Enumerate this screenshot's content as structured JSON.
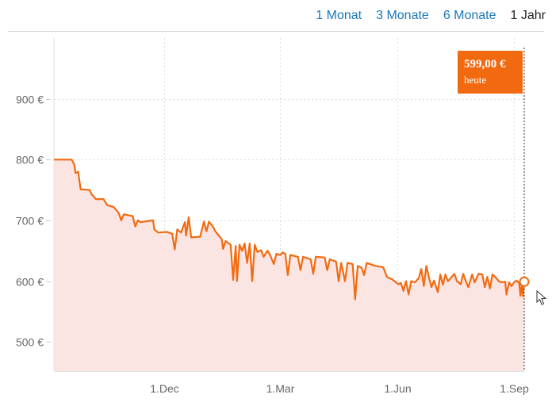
{
  "range_tabs": [
    {
      "label": "1 Monat",
      "active": false
    },
    {
      "label": "3 Monate",
      "active": false
    },
    {
      "label": "6 Monate",
      "active": false
    },
    {
      "label": "1 Jahr",
      "active": true
    }
  ],
  "current_badge": {
    "price": "599,00 €",
    "label": "heute"
  },
  "colors": {
    "line": "#f26a10",
    "fill": "#fbe5e3",
    "tab_link": "#1a78b8",
    "badge": "#f26a10"
  },
  "chart_data": {
    "type": "area",
    "title": "",
    "xlabel": "",
    "ylabel": "",
    "ylim": [
      452,
      1000
    ],
    "xlim": [
      "2015-09-05",
      "2016-09-09"
    ],
    "grid": true,
    "y_ticks": [
      {
        "value": 500,
        "label": "500 €"
      },
      {
        "value": 600,
        "label": "600 €"
      },
      {
        "value": 700,
        "label": "700 €"
      },
      {
        "value": 800,
        "label": "800 €"
      },
      {
        "value": 900,
        "label": "900 €"
      }
    ],
    "x_ticks": [
      {
        "value": "2015-12-01",
        "label": "1.Dec"
      },
      {
        "value": "2016-03-01",
        "label": "1.Mar"
      },
      {
        "value": "2016-06-01",
        "label": "1.Jun"
      },
      {
        "value": "2016-09-01",
        "label": "1.Sep"
      }
    ],
    "series": [
      {
        "points": [
          [
            "2015-09-05",
            800
          ],
          [
            "2015-09-19",
            800
          ],
          [
            "2015-09-21",
            792
          ],
          [
            "2015-09-22",
            778
          ],
          [
            "2015-09-24",
            780
          ],
          [
            "2015-09-26",
            751
          ],
          [
            "2015-10-03",
            750
          ],
          [
            "2015-10-05",
            742
          ],
          [
            "2015-10-08",
            735
          ],
          [
            "2015-10-14",
            735
          ],
          [
            "2015-10-17",
            725
          ],
          [
            "2015-10-22",
            722
          ],
          [
            "2015-10-26",
            712
          ],
          [
            "2015-10-28",
            700
          ],
          [
            "2015-10-30",
            710
          ],
          [
            "2015-11-06",
            707
          ],
          [
            "2015-11-08",
            690
          ],
          [
            "2015-11-10",
            700
          ],
          [
            "2015-11-12",
            697
          ],
          [
            "2015-11-22",
            700
          ],
          [
            "2015-11-23",
            685
          ],
          [
            "2015-11-26",
            680
          ],
          [
            "2015-12-03",
            681
          ],
          [
            "2015-12-07",
            678
          ],
          [
            "2015-12-09",
            652
          ],
          [
            "2015-12-11",
            685
          ],
          [
            "2015-12-14",
            680
          ],
          [
            "2015-12-17",
            697
          ],
          [
            "2015-12-18",
            675
          ],
          [
            "2015-12-20",
            705
          ],
          [
            "2015-12-22",
            672
          ],
          [
            "2015-12-29",
            673
          ],
          [
            "2016-01-01",
            698
          ],
          [
            "2016-01-03",
            682
          ],
          [
            "2016-01-05",
            698
          ],
          [
            "2016-01-08",
            690
          ],
          [
            "2016-01-10",
            682
          ],
          [
            "2016-01-15",
            669
          ],
          [
            "2016-01-16",
            653
          ],
          [
            "2016-01-18",
            666
          ],
          [
            "2016-01-22",
            660
          ],
          [
            "2016-01-24",
            602
          ],
          [
            "2016-01-26",
            658
          ],
          [
            "2016-01-27",
            600
          ],
          [
            "2016-01-29",
            660
          ],
          [
            "2016-01-31",
            650
          ],
          [
            "2016-02-02",
            662
          ],
          [
            "2016-02-04",
            630
          ],
          [
            "2016-02-06",
            662
          ],
          [
            "2016-02-08",
            600
          ],
          [
            "2016-02-10",
            660
          ],
          [
            "2016-02-12",
            648
          ],
          [
            "2016-02-15",
            651
          ],
          [
            "2016-02-17",
            640
          ],
          [
            "2016-02-20",
            650
          ],
          [
            "2016-02-22",
            643
          ],
          [
            "2016-02-25",
            628
          ],
          [
            "2016-02-27",
            645
          ],
          [
            "2016-03-01",
            643
          ],
          [
            "2016-03-03",
            647
          ],
          [
            "2016-03-05",
            645
          ],
          [
            "2016-03-07",
            610
          ],
          [
            "2016-03-09",
            643
          ],
          [
            "2016-03-15",
            640
          ],
          [
            "2016-03-17",
            618
          ],
          [
            "2016-03-19",
            640
          ],
          [
            "2016-03-25",
            636
          ],
          [
            "2016-03-27",
            612
          ],
          [
            "2016-03-29",
            640
          ],
          [
            "2016-04-05",
            639
          ],
          [
            "2016-04-07",
            618
          ],
          [
            "2016-04-09",
            636
          ],
          [
            "2016-04-14",
            632
          ],
          [
            "2016-04-16",
            600
          ],
          [
            "2016-04-18",
            630
          ],
          [
            "2016-04-21",
            600
          ],
          [
            "2016-04-23",
            630
          ],
          [
            "2016-04-27",
            628
          ],
          [
            "2016-04-29",
            570
          ],
          [
            "2016-05-01",
            625
          ],
          [
            "2016-05-04",
            622
          ],
          [
            "2016-05-06",
            610
          ],
          [
            "2016-05-08",
            630
          ],
          [
            "2016-05-15",
            625
          ],
          [
            "2016-05-21",
            623
          ],
          [
            "2016-05-24",
            607
          ],
          [
            "2016-05-28",
            603
          ],
          [
            "2016-06-02",
            595
          ],
          [
            "2016-06-04",
            597
          ],
          [
            "2016-06-06",
            584
          ],
          [
            "2016-06-08",
            600
          ],
          [
            "2016-06-10",
            578
          ],
          [
            "2016-06-12",
            600
          ],
          [
            "2016-06-15",
            598
          ],
          [
            "2016-06-18",
            605
          ],
          [
            "2016-06-20",
            620
          ],
          [
            "2016-06-22",
            592
          ],
          [
            "2016-06-24",
            625
          ],
          [
            "2016-06-26",
            606
          ],
          [
            "2016-06-28",
            590
          ],
          [
            "2016-06-30",
            601
          ],
          [
            "2016-07-03",
            582
          ],
          [
            "2016-07-05",
            611
          ],
          [
            "2016-07-07",
            594
          ],
          [
            "2016-07-09",
            611
          ],
          [
            "2016-07-11",
            600
          ],
          [
            "2016-07-14",
            607
          ],
          [
            "2016-07-16",
            612
          ],
          [
            "2016-07-18",
            600
          ],
          [
            "2016-07-21",
            595
          ],
          [
            "2016-07-23",
            612
          ],
          [
            "2016-07-25",
            600
          ],
          [
            "2016-07-27",
            590
          ],
          [
            "2016-07-30",
            611
          ],
          [
            "2016-08-01",
            598
          ],
          [
            "2016-08-04",
            612
          ],
          [
            "2016-08-07",
            611
          ],
          [
            "2016-08-09",
            590
          ],
          [
            "2016-08-11",
            607
          ],
          [
            "2016-08-13",
            588
          ],
          [
            "2016-08-15",
            611
          ],
          [
            "2016-08-18",
            605
          ],
          [
            "2016-08-20",
            600
          ],
          [
            "2016-08-22",
            598
          ],
          [
            "2016-08-25",
            599
          ],
          [
            "2016-08-26",
            578
          ],
          [
            "2016-08-28",
            598
          ],
          [
            "2016-08-30",
            592
          ],
          [
            "2016-09-01",
            598
          ],
          [
            "2016-09-03",
            601
          ],
          [
            "2016-09-05",
            597
          ],
          [
            "2016-09-06",
            576
          ],
          [
            "2016-09-07",
            593
          ],
          [
            "2016-09-08",
            575
          ],
          [
            "2016-09-09",
            599
          ]
        ]
      }
    ]
  }
}
